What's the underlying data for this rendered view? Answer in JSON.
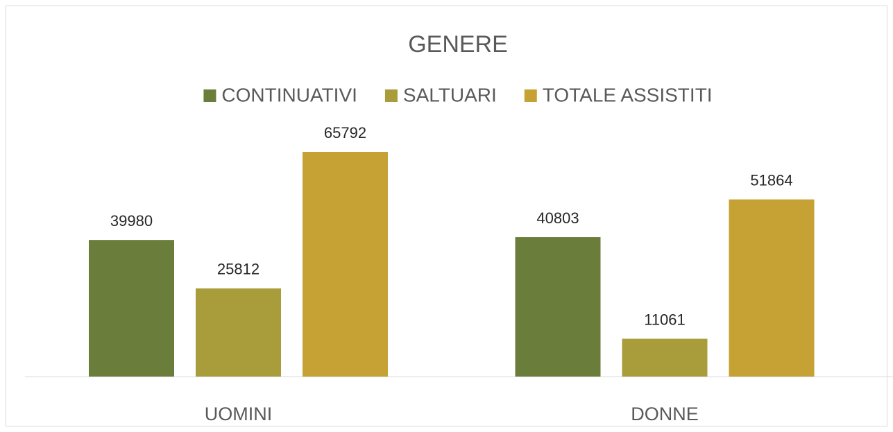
{
  "chart_data": {
    "type": "bar",
    "title": "GENERE",
    "categories": [
      "UOMINI",
      "DONNE"
    ],
    "series": [
      {
        "name": "CONTINUATIVI",
        "color": "#6b7d3b",
        "values": [
          39980,
          40803
        ]
      },
      {
        "name": "SALTUARI",
        "color": "#a99d3b",
        "values": [
          25812,
          11061
        ]
      },
      {
        "name": "TOTALE ASSISTITI",
        "color": "#c5a233",
        "values": [
          65792,
          51864
        ]
      }
    ],
    "legend": "top"
  }
}
